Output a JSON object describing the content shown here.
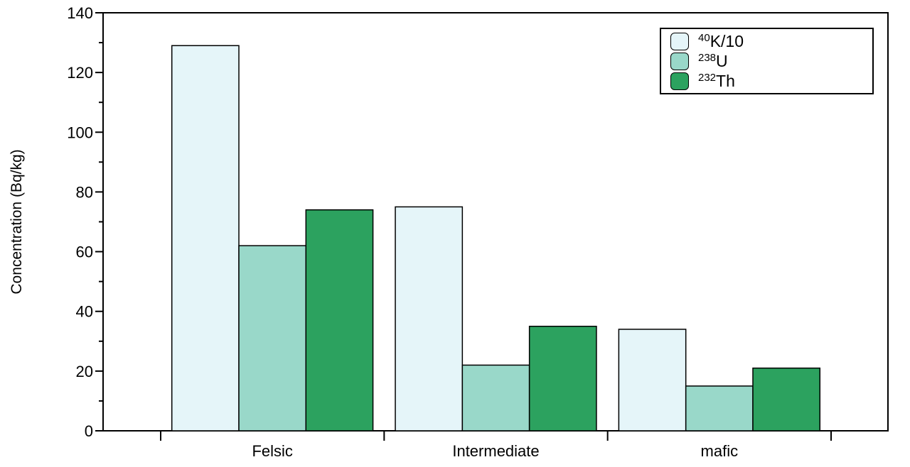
{
  "chart_data": {
    "type": "bar",
    "title": "",
    "xlabel": "",
    "ylabel": "Concentration (Bq/kg)",
    "categories": [
      "Felsic",
      "Intermediate",
      "mafic"
    ],
    "series": [
      {
        "name": "40K/10",
        "label_sup": "40",
        "label_main": "K/10",
        "color": "#e5f5f9",
        "values": [
          129,
          75,
          34
        ]
      },
      {
        "name": "238U",
        "label_sup": "238",
        "label_main": "U",
        "color": "#99d8c9",
        "values": [
          62,
          22,
          15
        ]
      },
      {
        "name": "232Th",
        "label_sup": "232",
        "label_main": "Th",
        "color": "#2ca25f",
        "values": [
          74,
          35,
          21
        ]
      }
    ],
    "ylim": [
      0,
      140
    ],
    "y_major_ticks": [
      0,
      20,
      40,
      60,
      80,
      100,
      120,
      140
    ],
    "y_minor_step": 10,
    "grid": false,
    "legend_position": "top-right",
    "bar_edge_color": "#000000",
    "axis_color": "#000000",
    "text_color": "#000000",
    "background": "#ffffff"
  }
}
